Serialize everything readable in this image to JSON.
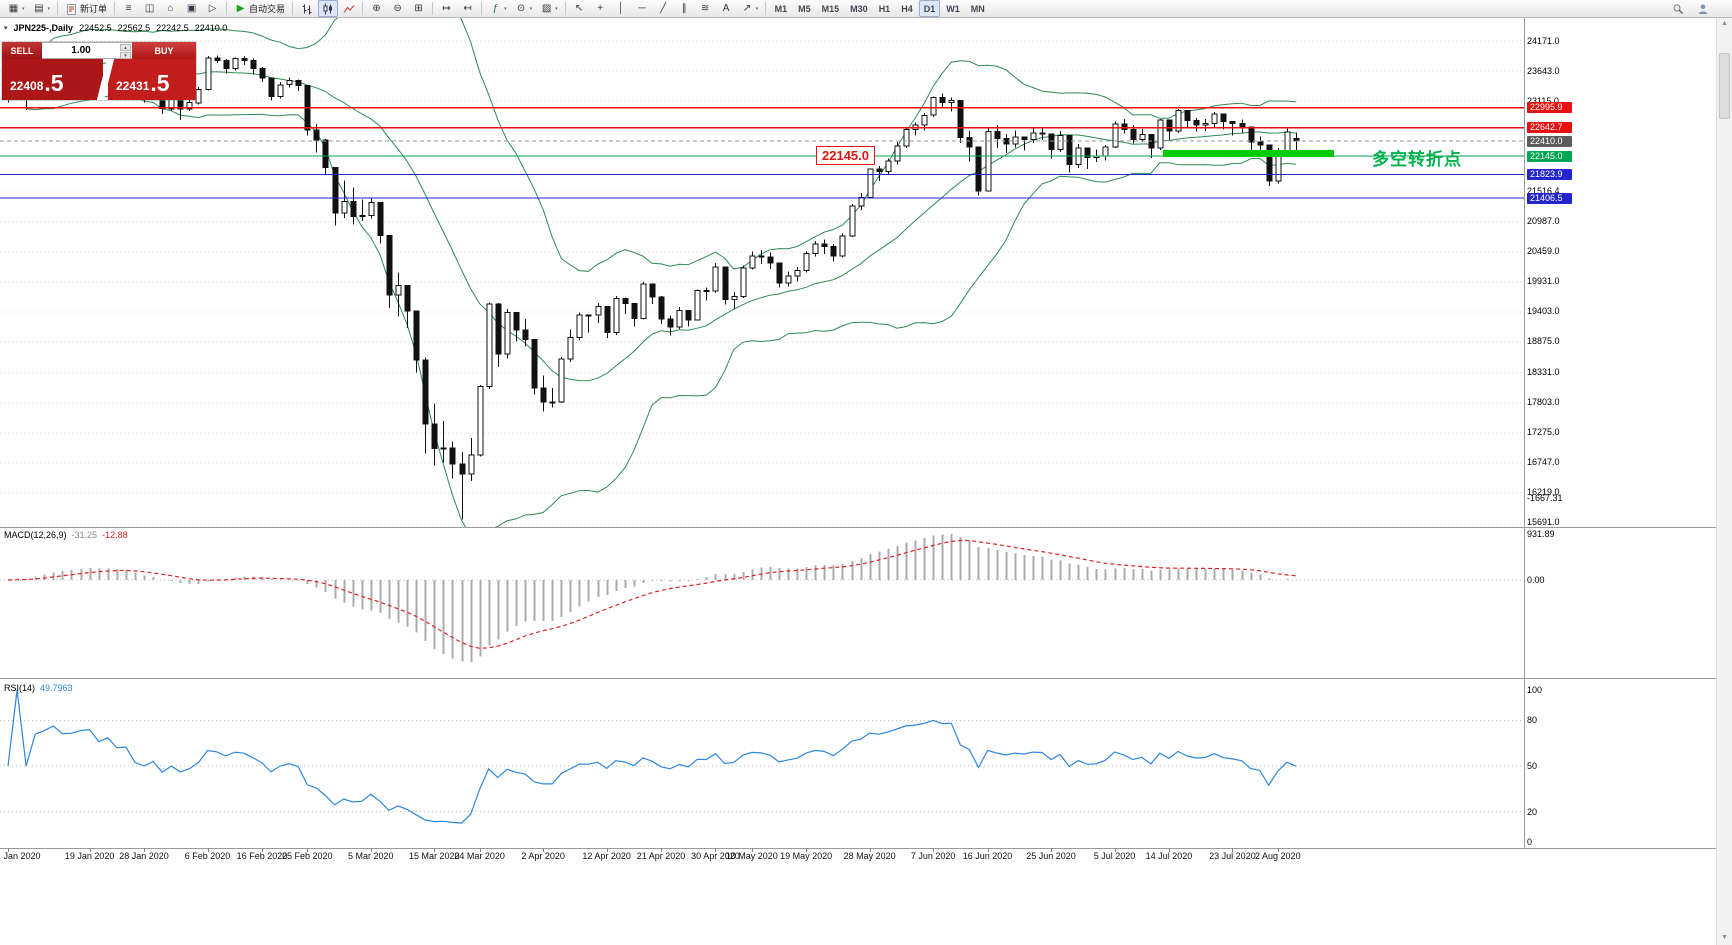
{
  "toolbar": {
    "groups": [
      {
        "items": [
          {
            "icon": "new-chart",
            "dd": true
          },
          {
            "icon": "profiles",
            "dd": true
          }
        ]
      },
      {
        "items": [
          {
            "icon": "new-order",
            "label": "新订单"
          }
        ]
      },
      {
        "items": [
          {
            "icon": "market-watch"
          },
          {
            "icon": "data-window"
          },
          {
            "icon": "navigator"
          },
          {
            "icon": "terminal"
          },
          {
            "icon": "strategy-tester"
          }
        ]
      },
      {
        "items": [
          {
            "icon": "autotrading",
            "label": "自动交易"
          }
        ]
      },
      {
        "items": [
          {
            "icon": "ohlc-bars"
          },
          {
            "icon": "candlesticks",
            "active": true
          },
          {
            "icon": "line-chart"
          }
        ]
      },
      {
        "items": [
          {
            "icon": "zoom-in"
          },
          {
            "icon": "zoom-out"
          },
          {
            "icon": "tile-windows"
          }
        ]
      },
      {
        "items": [
          {
            "icon": "auto-scroll"
          },
          {
            "icon": "chart-shift"
          }
        ]
      },
      {
        "items": [
          {
            "icon": "indicators",
            "dd": true
          },
          {
            "icon": "periods",
            "dd": true
          },
          {
            "icon": "templates",
            "dd": true
          }
        ]
      },
      {
        "items": [
          {
            "icon": "cursor"
          },
          {
            "icon": "crosshair"
          },
          {
            "icon": "vertical-line"
          },
          {
            "icon": "horizontal-line"
          },
          {
            "icon": "trendline"
          },
          {
            "icon": "channel"
          },
          {
            "icon": "fibonacci"
          },
          {
            "icon": "text"
          },
          {
            "icon": "arrows",
            "dd": true
          }
        ]
      }
    ],
    "timeframes": [
      {
        "label": "M1"
      },
      {
        "label": "M5"
      },
      {
        "label": "M15"
      },
      {
        "label": "M30"
      },
      {
        "label": "H1"
      },
      {
        "label": "H4"
      },
      {
        "label": "D1",
        "active": true
      },
      {
        "label": "W1"
      },
      {
        "label": "MN"
      }
    ],
    "right_icons": [
      "search",
      "community"
    ]
  },
  "chart": {
    "title": "JPN225-,Daily",
    "ohlc": {
      "open": "22452.5",
      "high": "22562.5",
      "low": "22242.5",
      "close": "22410.0"
    },
    "trade_panel": {
      "sell_label": "SELL",
      "buy_label": "BUY",
      "volume": "1.00",
      "sell_price_main": "22408",
      "sell_price_big": ".5",
      "buy_price_main": "22431",
      "buy_price_big": ".5"
    },
    "price_axis_labels": [
      "24171.0",
      "23643.0",
      "23115.0",
      "21516.4",
      "20987.0",
      "20459.0",
      "19931.0",
      "19403.0",
      "18875.0",
      "18331.0",
      "17803.0",
      "17275.0",
      "16747.0",
      "16219.0",
      "15691.0"
    ],
    "hlines": [
      {
        "price": 22995.9,
        "label": "22995.9",
        "color": "#e81010",
        "type": "solid",
        "label_bg": "#e81010"
      },
      {
        "price": 22642.7,
        "label": "22642.7",
        "color": "#e81010",
        "type": "solid",
        "label_bg": "#e81010"
      },
      {
        "price": 22410.0,
        "label": "22410.0",
        "color": "#9a9a9a",
        "type": "dash",
        "label_bg": "#5c5c5c"
      },
      {
        "price": 22145.0,
        "label": "22145.0",
        "color": "#00a651",
        "type": "solid",
        "label_bg": "#00a651"
      },
      {
        "price": 21823.9,
        "label": "21823.9",
        "color": "#2525cd",
        "type": "solid",
        "label_bg": "#2525cd"
      },
      {
        "price": 21406.5,
        "label": "21406.5",
        "color": "#2525cd",
        "type": "solid",
        "label_bg": "#2525cd"
      }
    ],
    "annotations": {
      "price_callout": "22145.0",
      "turning_point_text": "多空转折点",
      "highlight_color": "#00cc00"
    }
  },
  "chart_data": {
    "type": "candlestick",
    "symbol": "JPN225-",
    "timeframe": "Daily",
    "price_axis": {
      "top_value": 24171.0,
      "step": 528.0,
      "bottom_value": 15691.0
    },
    "candles": [
      [
        23660,
        23680,
        23090,
        23205
      ],
      [
        23205,
        23620,
        23170,
        23576
      ],
      [
        23576,
        23590,
        22960,
        23205
      ],
      [
        23205,
        23770,
        23180,
        23740
      ],
      [
        23740,
        23900,
        23700,
        23851
      ],
      [
        23851,
        24050,
        23820,
        24025
      ],
      [
        24025,
        24060,
        23880,
        23917
      ],
      [
        23917,
        23950,
        23840,
        23933
      ],
      [
        23933,
        24090,
        23900,
        24041
      ],
      [
        24041,
        24115,
        24000,
        24084
      ],
      [
        24084,
        24100,
        23800,
        23864
      ],
      [
        23864,
        24060,
        23830,
        24031
      ],
      [
        24031,
        24050,
        23720,
        23795
      ],
      [
        23795,
        23880,
        23700,
        23827
      ],
      [
        23827,
        23830,
        23280,
        23344
      ],
      [
        23344,
        23390,
        23090,
        23216
      ],
      [
        23216,
        23420,
        23150,
        23380
      ],
      [
        23380,
        23390,
        22890,
        22978
      ],
      [
        22978,
        23270,
        22950,
        23205
      ],
      [
        23205,
        23210,
        22780,
        22972
      ],
      [
        22972,
        23150,
        22940,
        23085
      ],
      [
        23085,
        23360,
        23050,
        23320
      ],
      [
        23320,
        23910,
        23300,
        23874
      ],
      [
        23874,
        23920,
        23780,
        23828
      ],
      [
        23828,
        23850,
        23600,
        23686
      ],
      [
        23686,
        23880,
        23650,
        23861
      ],
      [
        23861,
        23910,
        23750,
        23828
      ],
      [
        23828,
        23860,
        23580,
        23687
      ],
      [
        23687,
        23710,
        23450,
        23523
      ],
      [
        23523,
        23530,
        23120,
        23194
      ],
      [
        23194,
        23450,
        23160,
        23401
      ],
      [
        23401,
        23530,
        23350,
        23479
      ],
      [
        23479,
        23490,
        23290,
        23387
      ],
      [
        23387,
        23390,
        22510,
        22605
      ],
      [
        22605,
        22710,
        22210,
        22426
      ],
      [
        22426,
        22450,
        21820,
        21948
      ],
      [
        21948,
        21950,
        20920,
        21143
      ],
      [
        21143,
        21720,
        21060,
        21344
      ],
      [
        21344,
        21590,
        20940,
        21082
      ],
      [
        21082,
        21380,
        21000,
        21100
      ],
      [
        21100,
        21420,
        21050,
        21329
      ],
      [
        21329,
        21330,
        20610,
        20750
      ],
      [
        20750,
        20760,
        19470,
        19699
      ],
      [
        19699,
        20100,
        19320,
        19867
      ],
      [
        19867,
        19880,
        19120,
        19416
      ],
      [
        19416,
        19420,
        18340,
        18560
      ],
      [
        18560,
        18600,
        16910,
        17431
      ],
      [
        17431,
        17790,
        16700,
        17002
      ],
      [
        17002,
        17480,
        16750,
        17012
      ],
      [
        17012,
        17120,
        16470,
        16727
      ],
      [
        16727,
        16940,
        15750,
        16552
      ],
      [
        16552,
        17180,
        16430,
        16888
      ],
      [
        16888,
        18120,
        16860,
        18092
      ],
      [
        18092,
        19570,
        18050,
        19546
      ],
      [
        19546,
        19560,
        18430,
        18665
      ],
      [
        18665,
        19450,
        18580,
        19389
      ],
      [
        19389,
        19400,
        18880,
        19085
      ],
      [
        19085,
        19280,
        18790,
        18917
      ],
      [
        18917,
        18920,
        17950,
        18065
      ],
      [
        18065,
        18280,
        17650,
        17818
      ],
      [
        17818,
        18060,
        17720,
        17820
      ],
      [
        17820,
        18610,
        17800,
        18576
      ],
      [
        18576,
        19090,
        18520,
        18950
      ],
      [
        18950,
        19390,
        18900,
        19353
      ],
      [
        19353,
        19360,
        19040,
        19346
      ],
      [
        19346,
        19560,
        19210,
        19499
      ],
      [
        19499,
        19500,
        18940,
        19043
      ],
      [
        19043,
        19680,
        19000,
        19638
      ],
      [
        19638,
        19660,
        19370,
        19550
      ],
      [
        19550,
        19560,
        19150,
        19290
      ],
      [
        19290,
        19930,
        19270,
        19897
      ],
      [
        19897,
        19900,
        19540,
        19669
      ],
      [
        19669,
        19680,
        19190,
        19280
      ],
      [
        19280,
        19340,
        18990,
        19138
      ],
      [
        19138,
        19490,
        19100,
        19429
      ],
      [
        19429,
        19440,
        19150,
        19262
      ],
      [
        19262,
        19800,
        19250,
        19783
      ],
      [
        19783,
        19830,
        19600,
        19771
      ],
      [
        19771,
        20260,
        19740,
        20194
      ],
      [
        20194,
        20200,
        19530,
        19619
      ],
      [
        19619,
        19750,
        19450,
        19675
      ],
      [
        19675,
        20220,
        19650,
        20179
      ],
      [
        20179,
        20470,
        20150,
        20391
      ],
      [
        20391,
        20490,
        20250,
        20366
      ],
      [
        20366,
        20450,
        20160,
        20267
      ],
      [
        20267,
        20270,
        19830,
        19915
      ],
      [
        19915,
        20110,
        19850,
        20037
      ],
      [
        20037,
        20190,
        19940,
        20133
      ],
      [
        20133,
        20470,
        20100,
        20433
      ],
      [
        20433,
        20650,
        20380,
        20595
      ],
      [
        20595,
        20680,
        20420,
        20552
      ],
      [
        20552,
        20600,
        20290,
        20388
      ],
      [
        20388,
        20780,
        20360,
        20741
      ],
      [
        20741,
        21300,
        20720,
        21271
      ],
      [
        21271,
        21500,
        21200,
        21419
      ],
      [
        21419,
        21930,
        21400,
        21916
      ],
      [
        21916,
        21970,
        21710,
        21878
      ],
      [
        21878,
        22100,
        21820,
        22062
      ],
      [
        22062,
        22390,
        22000,
        22326
      ],
      [
        22326,
        22650,
        22290,
        22614
      ],
      [
        22614,
        22740,
        22510,
        22696
      ],
      [
        22696,
        22900,
        22600,
        22864
      ],
      [
        22864,
        23190,
        22830,
        23178
      ],
      [
        23178,
        23250,
        22990,
        23091
      ],
      [
        23091,
        23180,
        22930,
        23125
      ],
      [
        23125,
        23130,
        22380,
        22472
      ],
      [
        22472,
        22590,
        22050,
        22305
      ],
      [
        22305,
        22310,
        21450,
        21531
      ],
      [
        21531,
        22640,
        21520,
        22582
      ],
      [
        22582,
        22680,
        22290,
        22456
      ],
      [
        22456,
        22530,
        22200,
        22355
      ],
      [
        22355,
        22600,
        22300,
        22479
      ],
      [
        22479,
        22490,
        22240,
        22437
      ],
      [
        22437,
        22640,
        22380,
        22549
      ],
      [
        22549,
        22650,
        22430,
        22534
      ],
      [
        22534,
        22540,
        22100,
        22260
      ],
      [
        22260,
        22590,
        22220,
        22512
      ],
      [
        22512,
        22520,
        21860,
        21995
      ],
      [
        21995,
        22360,
        21940,
        22288
      ],
      [
        22288,
        22290,
        21920,
        22122
      ],
      [
        22122,
        22260,
        22040,
        22146
      ],
      [
        22146,
        22340,
        22070,
        22306
      ],
      [
        22306,
        22750,
        22290,
        22714
      ],
      [
        22714,
        22800,
        22540,
        22615
      ],
      [
        22615,
        22680,
        22370,
        22438
      ],
      [
        22438,
        22620,
        22390,
        22529
      ],
      [
        22529,
        22530,
        22110,
        22291
      ],
      [
        22291,
        22800,
        22250,
        22785
      ],
      [
        22785,
        22790,
        22430,
        22587
      ],
      [
        22587,
        22970,
        22550,
        22946
      ],
      [
        22946,
        22950,
        22660,
        22770
      ],
      [
        22770,
        22820,
        22580,
        22696
      ],
      [
        22696,
        22800,
        22590,
        22717
      ],
      [
        22717,
        22920,
        22650,
        22884
      ],
      [
        22884,
        22890,
        22610,
        22752
      ],
      [
        22752,
        22760,
        22510,
        22715
      ],
      [
        22715,
        22790,
        22550,
        22657
      ],
      [
        22657,
        22670,
        22230,
        22397
      ],
      [
        22397,
        22490,
        22190,
        22339
      ],
      [
        22339,
        22340,
        21620,
        21710
      ],
      [
        21710,
        22290,
        21660,
        22195
      ],
      [
        22195,
        22630,
        22150,
        22573
      ],
      [
        22452,
        22562,
        22242,
        22410
      ]
    ],
    "date_ticks": [
      [
        "Jan 2020",
        0
      ],
      [
        "19 Jan 2020",
        9
      ],
      [
        "28 Jan 2020",
        15
      ],
      [
        "6 Feb 2020",
        22
      ],
      [
        "16 Feb 2020",
        28
      ],
      [
        "25 Feb 2020",
        33
      ],
      [
        "5 Mar 2020",
        40
      ],
      [
        "15 Mar 2020",
        47
      ],
      [
        "24 Mar 2020",
        52
      ],
      [
        "2 Apr 2020",
        59
      ],
      [
        "12 Apr 2020",
        66
      ],
      [
        "21 Apr 2020",
        72
      ],
      [
        "30 Apr 2020",
        78
      ],
      [
        "10 May 2020",
        82
      ],
      [
        "19 May 2020",
        88
      ],
      [
        "28 May 2020",
        95
      ],
      [
        "7 Jun 2020",
        102
      ],
      [
        "16 Jun 2020",
        108
      ],
      [
        "25 Jun 2020",
        115
      ],
      [
        "5 Jul 2020",
        122
      ],
      [
        "14 Jul 2020",
        128
      ],
      [
        "23 Jul 2020",
        135
      ],
      [
        "2 Aug 2020",
        140
      ]
    ],
    "overlays": [
      {
        "name": "Bollinger Bands",
        "period": 20,
        "deviation": 2,
        "color": "#2e8b57"
      }
    ],
    "indicators": [
      {
        "name": "MACD",
        "params": "12,26,9",
        "label": "MACD(12,26,9)",
        "value_main": "-31.25",
        "value_signal": "-12.88",
        "histogram_color": "#ababab",
        "signal_color": "#dd2222",
        "scale": [
          {
            "label": "931.89",
            "value": 931.89
          },
          {
            "label": "0.00",
            "value": 0
          },
          {
            "label": "-1667.31",
            "value": -1667.31
          }
        ]
      },
      {
        "name": "RSI",
        "params": "14",
        "label": "RSI(14)",
        "value": "49.7963",
        "color": "#2e86e0",
        "levels": [
          80,
          50,
          20
        ],
        "scale": [
          {
            "label": "100",
            "value": 100
          },
          {
            "label": "80",
            "value": 80
          },
          {
            "label": "50",
            "value": 50
          },
          {
            "label": "20",
            "value": 20
          },
          {
            "label": "0",
            "value": 0
          }
        ]
      }
    ]
  }
}
